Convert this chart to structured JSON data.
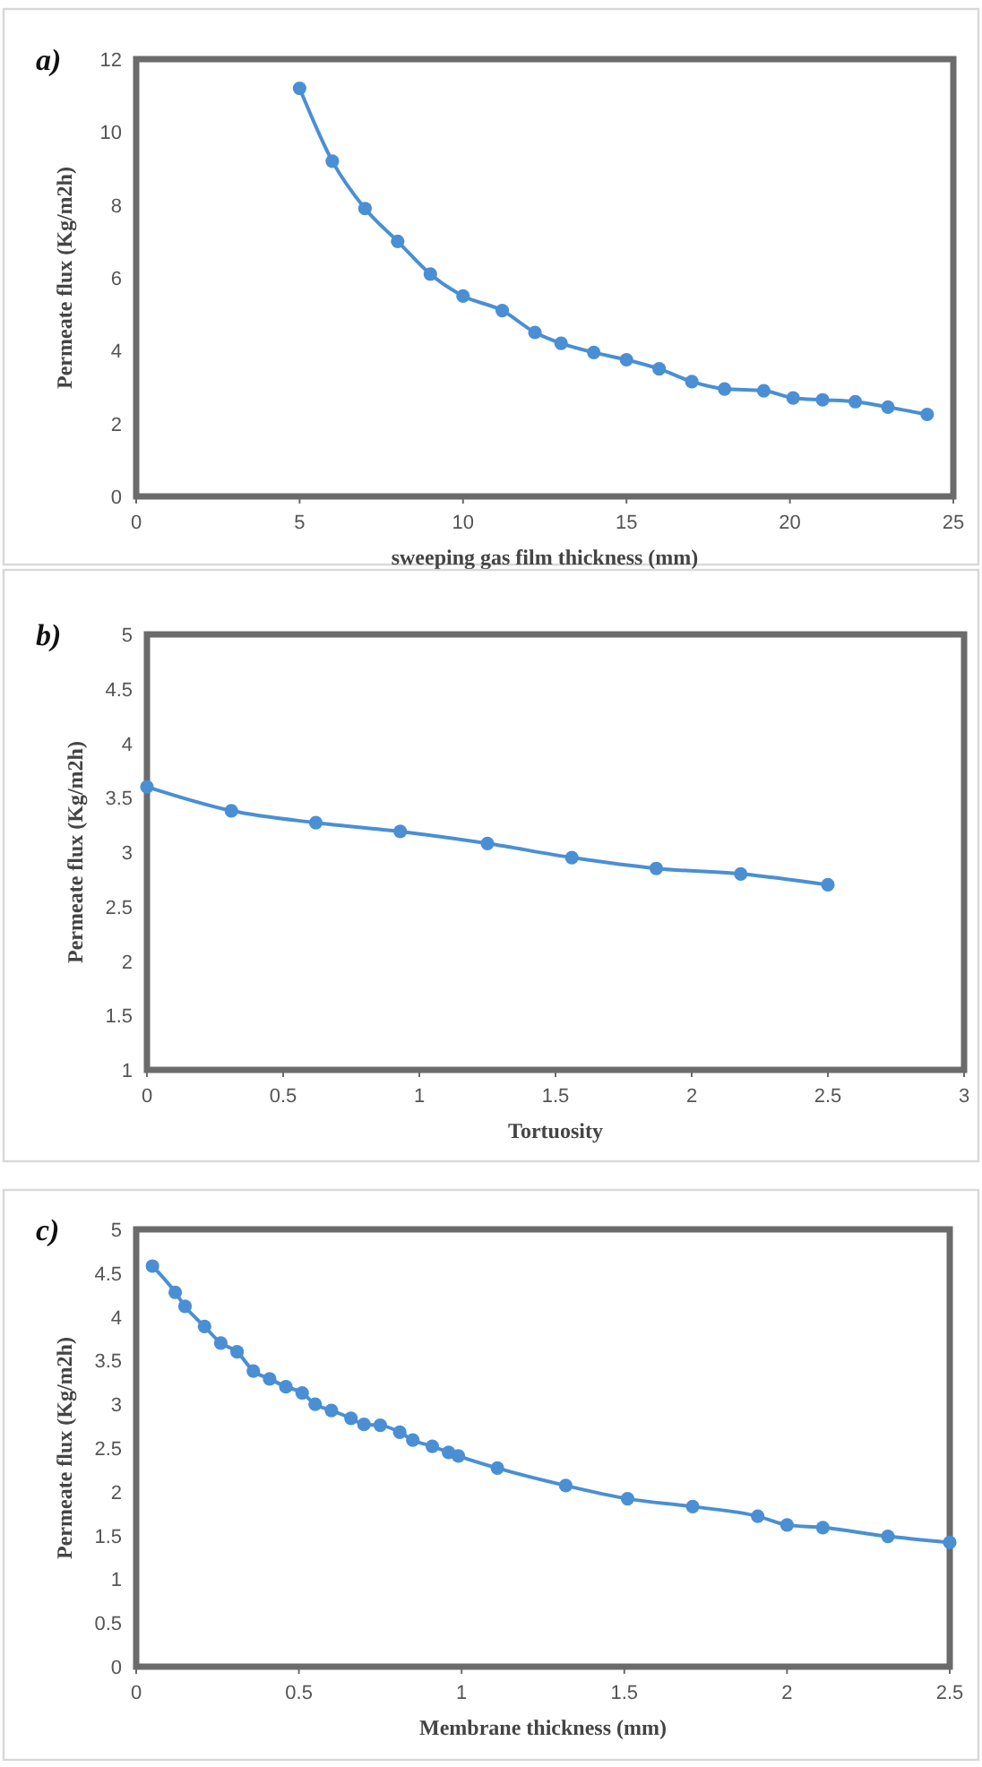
{
  "chart_data": [
    {
      "type": "line",
      "annotations": [
        "a)"
      ],
      "xlabel": "sweeping gas film thickness (mm)",
      "ylabel": "Permeate flux (Kg/m2h)",
      "xlim": [
        0,
        25
      ],
      "xticks": [
        0,
        5,
        10,
        15,
        20,
        25
      ],
      "ylim": [
        0,
        12
      ],
      "yticks": [
        0,
        2,
        4,
        6,
        8,
        10,
        12
      ],
      "grid": false,
      "marker": "circle",
      "line_style": "solid",
      "series": [
        {
          "color": "#4a8fd4",
          "x": [
            5,
            6,
            7,
            8,
            9,
            10,
            11.2,
            12.2,
            13,
            14,
            15,
            16,
            17,
            18,
            19.2,
            20.1,
            21,
            22,
            23,
            24.2
          ],
          "values": [
            11.2,
            9.2,
            7.9,
            7.0,
            6.1,
            5.5,
            5.1,
            4.5,
            4.2,
            3.95,
            3.75,
            3.5,
            3.15,
            2.95,
            2.9,
            2.7,
            2.65,
            2.6,
            2.45,
            2.25
          ]
        }
      ]
    },
    {
      "type": "line",
      "annotations": [
        "b)"
      ],
      "xlabel": "Tortuosity",
      "ylabel": "Permeate flux (Kg/m2h)",
      "xlim": [
        0,
        3
      ],
      "xticks": [
        0,
        0.5,
        1,
        1.5,
        2,
        2.5,
        3
      ],
      "ylim": [
        1,
        5
      ],
      "yticks": [
        1,
        1.5,
        2,
        2.5,
        3,
        3.5,
        4,
        4.5,
        5
      ],
      "grid": false,
      "marker": "circle",
      "line_style": "solid",
      "series": [
        {
          "color": "#4a8fd4",
          "x": [
            0,
            0.31,
            0.62,
            0.93,
            1.25,
            1.56,
            1.87,
            2.18,
            2.5
          ],
          "values": [
            3.6,
            3.38,
            3.27,
            3.19,
            3.08,
            2.95,
            2.85,
            2.8,
            2.7
          ]
        }
      ]
    },
    {
      "type": "line",
      "annotations": [
        "c)"
      ],
      "xlabel": "Membrane thickness (mm)",
      "ylabel": "Permeate flux (Kg/m2h)",
      "xlim": [
        0,
        2.5
      ],
      "xticks": [
        0,
        0.5,
        1,
        1.5,
        2,
        2.5
      ],
      "ylim": [
        0,
        5
      ],
      "yticks": [
        0,
        0.5,
        1,
        1.5,
        2,
        2.5,
        3,
        3.5,
        4,
        4.5,
        5
      ],
      "grid": false,
      "marker": "circle",
      "line_style": "solid",
      "series": [
        {
          "color": "#4a8fd4",
          "x": [
            0.05,
            0.12,
            0.15,
            0.21,
            0.26,
            0.31,
            0.36,
            0.41,
            0.46,
            0.51,
            0.55,
            0.6,
            0.66,
            0.7,
            0.75,
            0.81,
            0.85,
            0.91,
            0.96,
            0.99,
            1.11,
            1.32,
            1.51,
            1.71,
            1.91,
            2.0,
            2.11,
            2.31,
            2.5
          ],
          "values": [
            4.58,
            4.28,
            4.12,
            3.89,
            3.7,
            3.6,
            3.38,
            3.29,
            3.2,
            3.13,
            3.0,
            2.93,
            2.84,
            2.77,
            2.76,
            2.68,
            2.59,
            2.52,
            2.45,
            2.41,
            2.27,
            2.07,
            1.92,
            1.83,
            1.72,
            1.62,
            1.59,
            1.49,
            1.42
          ]
        }
      ]
    }
  ]
}
